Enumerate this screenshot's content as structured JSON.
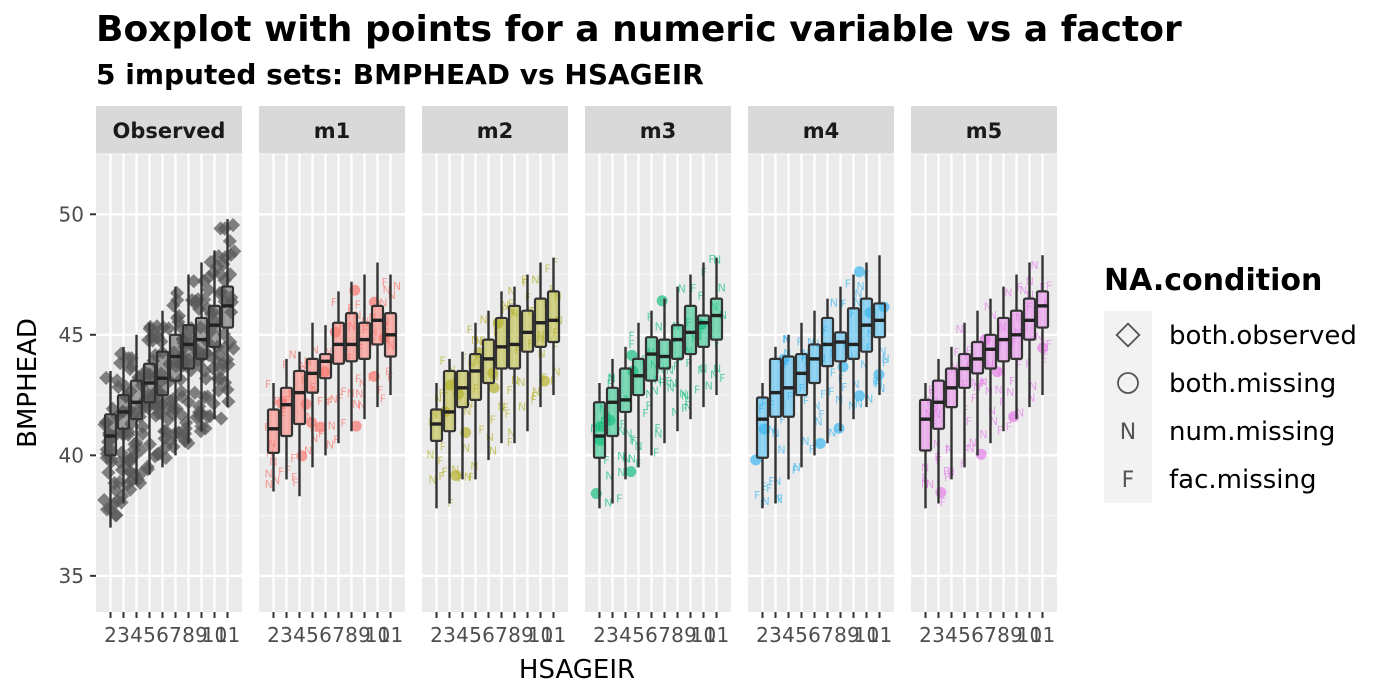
{
  "chart_data": {
    "type": "boxplot",
    "title": "Boxplot with points for a numeric variable vs a factor",
    "subtitle": "5  imputed sets:  BMPHEAD vs HSAGEIR",
    "xlabel": "HSAGEIR",
    "ylabel": "BMPHEAD",
    "ylim": [
      33.5,
      52.5
    ],
    "y_ticks": [
      35,
      40,
      45,
      50
    ],
    "x_categories": [
      "2",
      "3",
      "4",
      "5",
      "6",
      "7",
      "8",
      "9",
      "10",
      "11"
    ],
    "x_tick_labels": [
      "2",
      "3",
      "4",
      "5",
      "6",
      "7",
      "8",
      "9",
      "10",
      "11"
    ],
    "grid": true,
    "legend": {
      "title": "NA.condition",
      "position": "right",
      "items": [
        {
          "label": "both.observed",
          "symbol": "diamond"
        },
        {
          "label": "both.missing",
          "symbol": "circle"
        },
        {
          "label": "num.missing",
          "symbol": "N"
        },
        {
          "label": "fac.missing",
          "symbol": "F"
        }
      ]
    },
    "panels": [
      {
        "name": "Observed",
        "color": "#595959",
        "boxes": [
          {
            "x": "2",
            "min": 37.0,
            "q1": 40.0,
            "median": 40.8,
            "q3": 41.7,
            "max": 43.5
          },
          {
            "x": "3",
            "min": 38.0,
            "q1": 41.1,
            "median": 41.8,
            "q3": 42.5,
            "max": 44.5
          },
          {
            "x": "4",
            "min": 38.8,
            "q1": 41.5,
            "median": 42.2,
            "q3": 43.1,
            "max": 45.0
          },
          {
            "x": "5",
            "min": 39.2,
            "q1": 42.2,
            "median": 43.0,
            "q3": 43.8,
            "max": 45.5
          },
          {
            "x": "6",
            "min": 39.5,
            "q1": 42.5,
            "median": 43.2,
            "q3": 44.3,
            "max": 46.0
          },
          {
            "x": "7",
            "min": 40.0,
            "q1": 43.1,
            "median": 44.1,
            "q3": 45.0,
            "max": 47.0
          },
          {
            "x": "8",
            "min": 40.5,
            "q1": 43.6,
            "median": 44.6,
            "q3": 45.4,
            "max": 47.5
          },
          {
            "x": "9",
            "min": 41.0,
            "q1": 44.0,
            "median": 44.8,
            "q3": 45.7,
            "max": 48.0
          },
          {
            "x": "10",
            "min": 41.5,
            "q1": 44.5,
            "median": 45.4,
            "q3": 46.2,
            "max": 48.5
          },
          {
            "x": "11",
            "min": 42.0,
            "q1": 45.3,
            "median": 46.2,
            "q3": 47.0,
            "max": 49.8
          }
        ]
      },
      {
        "name": "m1",
        "color": "#F8766D",
        "boxes": [
          {
            "x": "2",
            "min": 38.5,
            "q1": 40.1,
            "median": 41.1,
            "q3": 41.9,
            "max": 43.0
          },
          {
            "x": "3",
            "min": 39.0,
            "q1": 40.8,
            "median": 42.1,
            "q3": 42.8,
            "max": 44.0
          },
          {
            "x": "4",
            "min": 38.3,
            "q1": 41.3,
            "median": 42.6,
            "q3": 43.5,
            "max": 44.3
          },
          {
            "x": "5",
            "min": 39.5,
            "q1": 42.6,
            "median": 43.4,
            "q3": 44.0,
            "max": 45.5
          },
          {
            "x": "6",
            "min": 40.0,
            "q1": 43.2,
            "median": 43.9,
            "q3": 44.2,
            "max": 45.4
          },
          {
            "x": "7",
            "min": 40.5,
            "q1": 43.8,
            "median": 44.6,
            "q3": 45.5,
            "max": 46.8
          },
          {
            "x": "8",
            "min": 41.0,
            "q1": 43.9,
            "median": 44.6,
            "q3": 45.9,
            "max": 47.2
          },
          {
            "x": "9",
            "min": 41.5,
            "q1": 44.0,
            "median": 44.8,
            "q3": 45.5,
            "max": 47.5
          },
          {
            "x": "10",
            "min": 42.0,
            "q1": 44.6,
            "median": 45.6,
            "q3": 46.2,
            "max": 48.0
          },
          {
            "x": "11",
            "min": 42.5,
            "q1": 44.1,
            "median": 45.0,
            "q3": 45.9,
            "max": 47.5
          }
        ]
      },
      {
        "name": "m2",
        "color": "#B5B22E",
        "boxes": [
          {
            "x": "2",
            "min": 37.8,
            "q1": 40.6,
            "median": 41.3,
            "q3": 41.9,
            "max": 43.0
          },
          {
            "x": "3",
            "min": 38.0,
            "q1": 41.0,
            "median": 41.8,
            "q3": 43.5,
            "max": 44.0
          },
          {
            "x": "4",
            "min": 39.0,
            "q1": 42.0,
            "median": 42.8,
            "q3": 43.5,
            "max": 44.3
          },
          {
            "x": "5",
            "min": 39.0,
            "q1": 42.3,
            "median": 43.5,
            "q3": 44.2,
            "max": 45.5
          },
          {
            "x": "6",
            "min": 39.8,
            "q1": 43.0,
            "median": 44.0,
            "q3": 44.8,
            "max": 46.0
          },
          {
            "x": "7",
            "min": 40.5,
            "q1": 43.6,
            "median": 44.5,
            "q3": 45.7,
            "max": 46.8
          },
          {
            "x": "8",
            "min": 40.5,
            "q1": 43.6,
            "median": 44.6,
            "q3": 46.2,
            "max": 47.0
          },
          {
            "x": "9",
            "min": 41.0,
            "q1": 44.3,
            "median": 45.1,
            "q3": 46.0,
            "max": 47.5
          },
          {
            "x": "10",
            "min": 42.0,
            "q1": 44.5,
            "median": 45.5,
            "q3": 46.5,
            "max": 48.0
          },
          {
            "x": "11",
            "min": 42.5,
            "q1": 44.7,
            "median": 45.6,
            "q3": 46.8,
            "max": 48.2
          }
        ]
      },
      {
        "name": "m3",
        "color": "#1ABF82",
        "boxes": [
          {
            "x": "2",
            "min": 37.8,
            "q1": 39.9,
            "median": 40.8,
            "q3": 42.2,
            "max": 43.0
          },
          {
            "x": "3",
            "min": 38.0,
            "q1": 40.8,
            "median": 42.2,
            "q3": 42.8,
            "max": 44.0
          },
          {
            "x": "4",
            "min": 39.0,
            "q1": 41.8,
            "median": 42.3,
            "q3": 43.6,
            "max": 44.5
          },
          {
            "x": "5",
            "min": 39.5,
            "q1": 42.5,
            "median": 43.3,
            "q3": 44.0,
            "max": 45.5
          },
          {
            "x": "6",
            "min": 40.0,
            "q1": 43.1,
            "median": 44.2,
            "q3": 44.9,
            "max": 46.0
          },
          {
            "x": "7",
            "min": 40.5,
            "q1": 43.6,
            "median": 44.1,
            "q3": 44.8,
            "max": 46.5
          },
          {
            "x": "8",
            "min": 41.0,
            "q1": 44.0,
            "median": 44.8,
            "q3": 45.4,
            "max": 47.0
          },
          {
            "x": "9",
            "min": 41.5,
            "q1": 44.2,
            "median": 45.1,
            "q3": 46.2,
            "max": 47.5
          },
          {
            "x": "10",
            "min": 42.0,
            "q1": 44.5,
            "median": 45.5,
            "q3": 45.8,
            "max": 48.0
          },
          {
            "x": "11",
            "min": 42.5,
            "q1": 44.8,
            "median": 45.8,
            "q3": 46.5,
            "max": 48.2
          }
        ]
      },
      {
        "name": "m4",
        "color": "#3CB6EF",
        "boxes": [
          {
            "x": "2",
            "min": 37.8,
            "q1": 39.9,
            "median": 41.5,
            "q3": 42.4,
            "max": 43.0
          },
          {
            "x": "3",
            "min": 38.0,
            "q1": 41.6,
            "median": 42.6,
            "q3": 44.0,
            "max": 44.5
          },
          {
            "x": "4",
            "min": 39.0,
            "q1": 41.6,
            "median": 42.8,
            "q3": 44.1,
            "max": 45.0
          },
          {
            "x": "5",
            "min": 39.5,
            "q1": 42.5,
            "median": 43.4,
            "q3": 44.2,
            "max": 45.5
          },
          {
            "x": "6",
            "min": 40.0,
            "q1": 43.0,
            "median": 44.0,
            "q3": 44.6,
            "max": 46.0
          },
          {
            "x": "7",
            "min": 40.5,
            "q1": 43.7,
            "median": 44.6,
            "q3": 45.7,
            "max": 46.5
          },
          {
            "x": "8",
            "min": 41.0,
            "q1": 43.9,
            "median": 44.7,
            "q3": 45.1,
            "max": 47.0
          },
          {
            "x": "9",
            "min": 41.5,
            "q1": 44.0,
            "median": 44.6,
            "q3": 46.1,
            "max": 47.5
          },
          {
            "x": "10",
            "min": 42.0,
            "q1": 44.3,
            "median": 45.4,
            "q3": 46.5,
            "max": 48.0
          },
          {
            "x": "11",
            "min": 42.5,
            "q1": 44.9,
            "median": 45.6,
            "q3": 46.3,
            "max": 48.3
          }
        ]
      },
      {
        "name": "m5",
        "color": "#E47FE8",
        "boxes": [
          {
            "x": "2",
            "min": 37.8,
            "q1": 40.2,
            "median": 41.5,
            "q3": 42.3,
            "max": 43.0
          },
          {
            "x": "3",
            "min": 38.0,
            "q1": 41.1,
            "median": 42.2,
            "q3": 43.1,
            "max": 44.0
          },
          {
            "x": "4",
            "min": 39.0,
            "q1": 42.0,
            "median": 42.8,
            "q3": 43.6,
            "max": 44.5
          },
          {
            "x": "5",
            "min": 39.5,
            "q1": 42.8,
            "median": 43.6,
            "q3": 44.2,
            "max": 45.5
          },
          {
            "x": "6",
            "min": 40.0,
            "q1": 43.4,
            "median": 44.0,
            "q3": 44.7,
            "max": 46.0
          },
          {
            "x": "7",
            "min": 40.5,
            "q1": 43.6,
            "median": 44.4,
            "q3": 45.0,
            "max": 46.5
          },
          {
            "x": "8",
            "min": 41.0,
            "q1": 43.9,
            "median": 44.8,
            "q3": 45.7,
            "max": 47.0
          },
          {
            "x": "9",
            "min": 41.5,
            "q1": 44.0,
            "median": 45.0,
            "q3": 46.0,
            "max": 47.5
          },
          {
            "x": "10",
            "min": 42.0,
            "q1": 44.8,
            "median": 45.6,
            "q3": 46.5,
            "max": 48.0
          },
          {
            "x": "11",
            "min": 42.5,
            "q1": 45.3,
            "median": 46.2,
            "q3": 46.8,
            "max": 48.3
          }
        ]
      }
    ]
  }
}
